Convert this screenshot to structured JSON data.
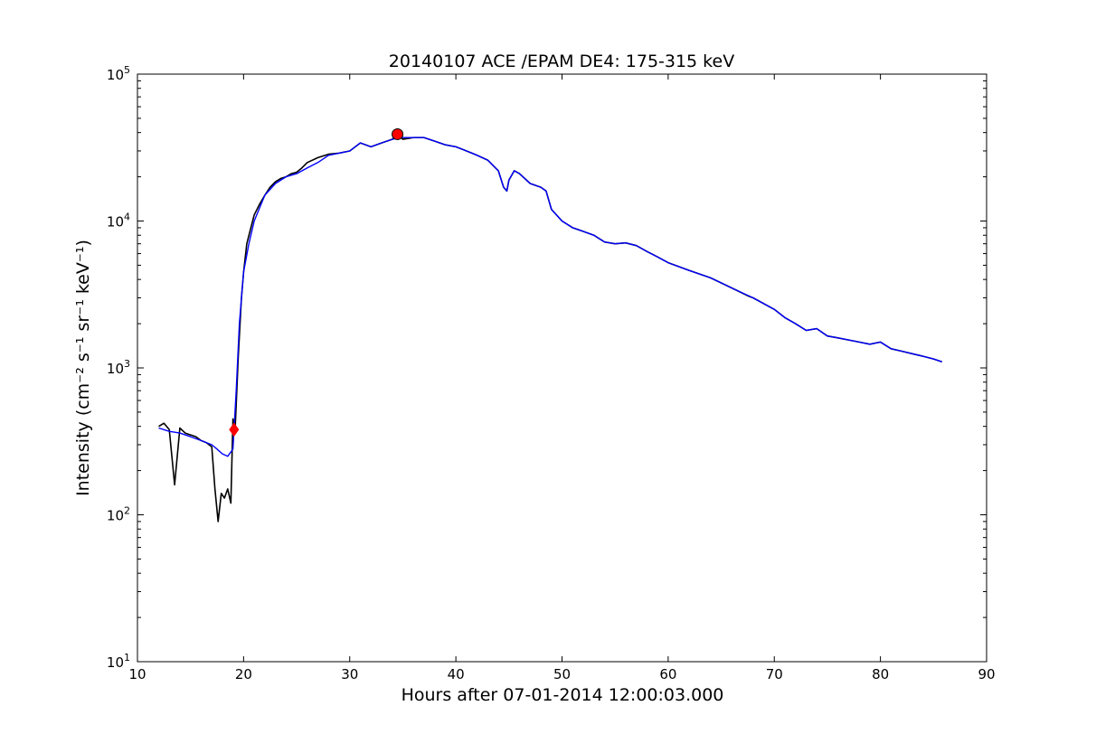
{
  "chart_data": {
    "type": "line",
    "title": "20140107 ACE /EPAM DE4: 175-315 keV",
    "xlabel": "Hours after 07-01-2014 12:00:03.000",
    "ylabel": "Intensity (cm⁻² s⁻¹ sr⁻¹ keV⁻¹)",
    "xlim": [
      10,
      90
    ],
    "ylim": [
      10,
      100000
    ],
    "yscale": "log",
    "grid": false,
    "x_ticks": [
      10,
      20,
      30,
      40,
      50,
      60,
      70,
      80,
      90
    ],
    "x_tick_labels": [
      "10",
      "20",
      "30",
      "40",
      "50",
      "60",
      "70",
      "80",
      "90"
    ],
    "y_ticks": [
      10,
      100,
      1000,
      10000,
      100000
    ],
    "y_tick_labels": [
      {
        "base": "10",
        "exp": "1"
      },
      {
        "base": "10",
        "exp": "2"
      },
      {
        "base": "10",
        "exp": "3"
      },
      {
        "base": "10",
        "exp": "4"
      },
      {
        "base": "10",
        "exp": "5"
      }
    ],
    "series": [
      {
        "role": "raw",
        "color": "#000000",
        "x": [
          12.0,
          12.5,
          13.0,
          13.5,
          14.0,
          14.5,
          15.0,
          15.5,
          16.0,
          16.5,
          17.0,
          17.3,
          17.6,
          17.9,
          18.2,
          18.5,
          18.8,
          19.0,
          19.2,
          19.5,
          19.8,
          20.0,
          20.3,
          20.6,
          21.0,
          21.5,
          22.0,
          22.5,
          23.0,
          23.5,
          24.0,
          24.5,
          25.0,
          25.5,
          26.0,
          27.0,
          28.0,
          29.0,
          30.0,
          31.0,
          32.0,
          33.0,
          34.0,
          34.5,
          35.0,
          36.0,
          37.0,
          38.0,
          39.0,
          40.0,
          41.0,
          42.0,
          43.0,
          44.0,
          44.5,
          44.8,
          45.0,
          45.5,
          46.0,
          47.0,
          48.0,
          48.5,
          49.0,
          50.0,
          51.0,
          52.0,
          53.0,
          54.0,
          55.0,
          56.0,
          57.0,
          58.0,
          59.0,
          60.0,
          62.0,
          64.0,
          66.0,
          67.5,
          68.0,
          70.0,
          71.0,
          72.0,
          73.0,
          74.0,
          75.0,
          76.0,
          77.0,
          78.0,
          79.0,
          80.0,
          81.0,
          82.0,
          83.0,
          84.0,
          85.0,
          85.8
        ],
        "y": [
          400,
          420,
          380,
          160,
          390,
          360,
          350,
          340,
          320,
          310,
          290,
          150,
          90,
          140,
          130,
          150,
          120,
          450,
          380,
          1200,
          3000,
          4500,
          7000,
          8500,
          11000,
          13000,
          15000,
          17000,
          18500,
          19500,
          20000,
          21000,
          21500,
          23000,
          25000,
          27000,
          28500,
          29000,
          30000,
          34000,
          32000,
          34000,
          36000,
          39000,
          36000,
          37000,
          37000,
          35000,
          33000,
          32000,
          30000,
          28000,
          26000,
          22000,
          17000,
          16000,
          19000,
          22000,
          21000,
          18000,
          17000,
          16000,
          12000,
          10000,
          9000,
          8500,
          8000,
          7200,
          7000,
          7100,
          6800,
          6200,
          5700,
          5200,
          4600,
          4100,
          3500,
          3100,
          3000,
          2500,
          2200,
          2000,
          1800,
          1850,
          1650,
          1600,
          1550,
          1500,
          1450,
          1500,
          1350,
          1300,
          1250,
          1200,
          1150,
          1100
        ]
      },
      {
        "role": "smoothed",
        "color": "#0000ff",
        "x": [
          12.0,
          13.0,
          14.0,
          15.0,
          16.0,
          17.0,
          17.5,
          18.0,
          18.5,
          19.0,
          19.3,
          19.6,
          20.0,
          20.5,
          21.0,
          22.0,
          23.0,
          24.0,
          25.0,
          26.0,
          27.0,
          28.0,
          29.0,
          30.0,
          31.0,
          32.0,
          33.0,
          34.0,
          35.0,
          36.0,
          37.0,
          38.0,
          39.0,
          40.0,
          41.0,
          42.0,
          43.0,
          44.0,
          44.5,
          44.8,
          45.0,
          45.5,
          46.0,
          47.0,
          48.0,
          48.5,
          49.0,
          50.0,
          51.0,
          52.0,
          53.0,
          54.0,
          55.0,
          56.0,
          57.0,
          58.0,
          59.0,
          60.0,
          62.0,
          64.0,
          66.0,
          68.0,
          70.0,
          71.0,
          72.0,
          73.0,
          74.0,
          75.0,
          76.0,
          77.0,
          78.0,
          79.0,
          80.0,
          81.0,
          82.0,
          83.0,
          84.0,
          85.0,
          85.8
        ],
        "y": [
          390,
          370,
          360,
          340,
          320,
          300,
          280,
          260,
          250,
          280,
          700,
          2000,
          4500,
          7000,
          10000,
          15000,
          18000,
          20000,
          21000,
          23000,
          25000,
          28000,
          29000,
          30000,
          34000,
          32000,
          34000,
          36000,
          37000,
          37000,
          37000,
          35000,
          33000,
          32000,
          30000,
          28000,
          26000,
          22000,
          17000,
          16000,
          19000,
          22000,
          21000,
          18000,
          17000,
          16000,
          12000,
          10000,
          9000,
          8500,
          8000,
          7200,
          7000,
          7100,
          6800,
          6200,
          5700,
          5200,
          4600,
          4100,
          3500,
          3000,
          2500,
          2200,
          2000,
          1800,
          1850,
          1650,
          1600,
          1550,
          1500,
          1450,
          1500,
          1350,
          1300,
          1250,
          1200,
          1150,
          1100
        ]
      }
    ],
    "markers": [
      {
        "name": "onset",
        "shape": "diamond",
        "color": "#ff0000",
        "x": 19.1,
        "y": 380
      },
      {
        "name": "peak",
        "shape": "circle",
        "color": "#ff0000",
        "x": 34.5,
        "y": 39000
      }
    ]
  }
}
